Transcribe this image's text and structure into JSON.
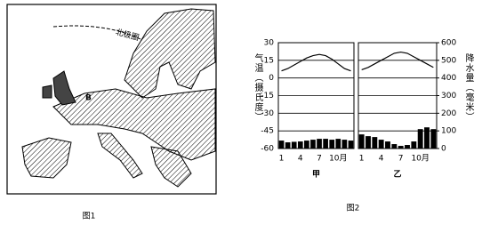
{
  "map": {
    "label_circle": "北极圈",
    "label_point": "B",
    "caption": "图1"
  },
  "chart_data": {
    "type": "climate",
    "caption": "图2",
    "ylabel": "气温（摄氏度）",
    "y2label": "降水量（毫米）",
    "ylim": [
      -60,
      30
    ],
    "yticks": [
      30,
      15,
      0,
      -15,
      -30,
      -45,
      -60
    ],
    "y2lim": [
      0,
      600
    ],
    "y2ticks": [
      600,
      500,
      400,
      300,
      200,
      100,
      0
    ],
    "categories": [
      "1",
      null,
      null,
      "4",
      null,
      null,
      "7",
      null,
      null,
      "10月",
      null,
      null
    ],
    "line_color": "#000000",
    "bar_color": "#000000",
    "panels": [
      {
        "name": "甲",
        "temperature": [
          6,
          8,
          11,
          14,
          17,
          19,
          20,
          19,
          16,
          12,
          8,
          6
        ],
        "precipitation": [
          45,
          35,
          38,
          40,
          45,
          50,
          55,
          55,
          50,
          55,
          50,
          45
        ]
      },
      {
        "name": "乙",
        "temperature": [
          7,
          9,
          12,
          15,
          18,
          21,
          22,
          21,
          18,
          15,
          12,
          9
        ],
        "precipitation": [
          80,
          70,
          65,
          50,
          40,
          25,
          15,
          20,
          40,
          110,
          120,
          110
        ]
      }
    ]
  }
}
